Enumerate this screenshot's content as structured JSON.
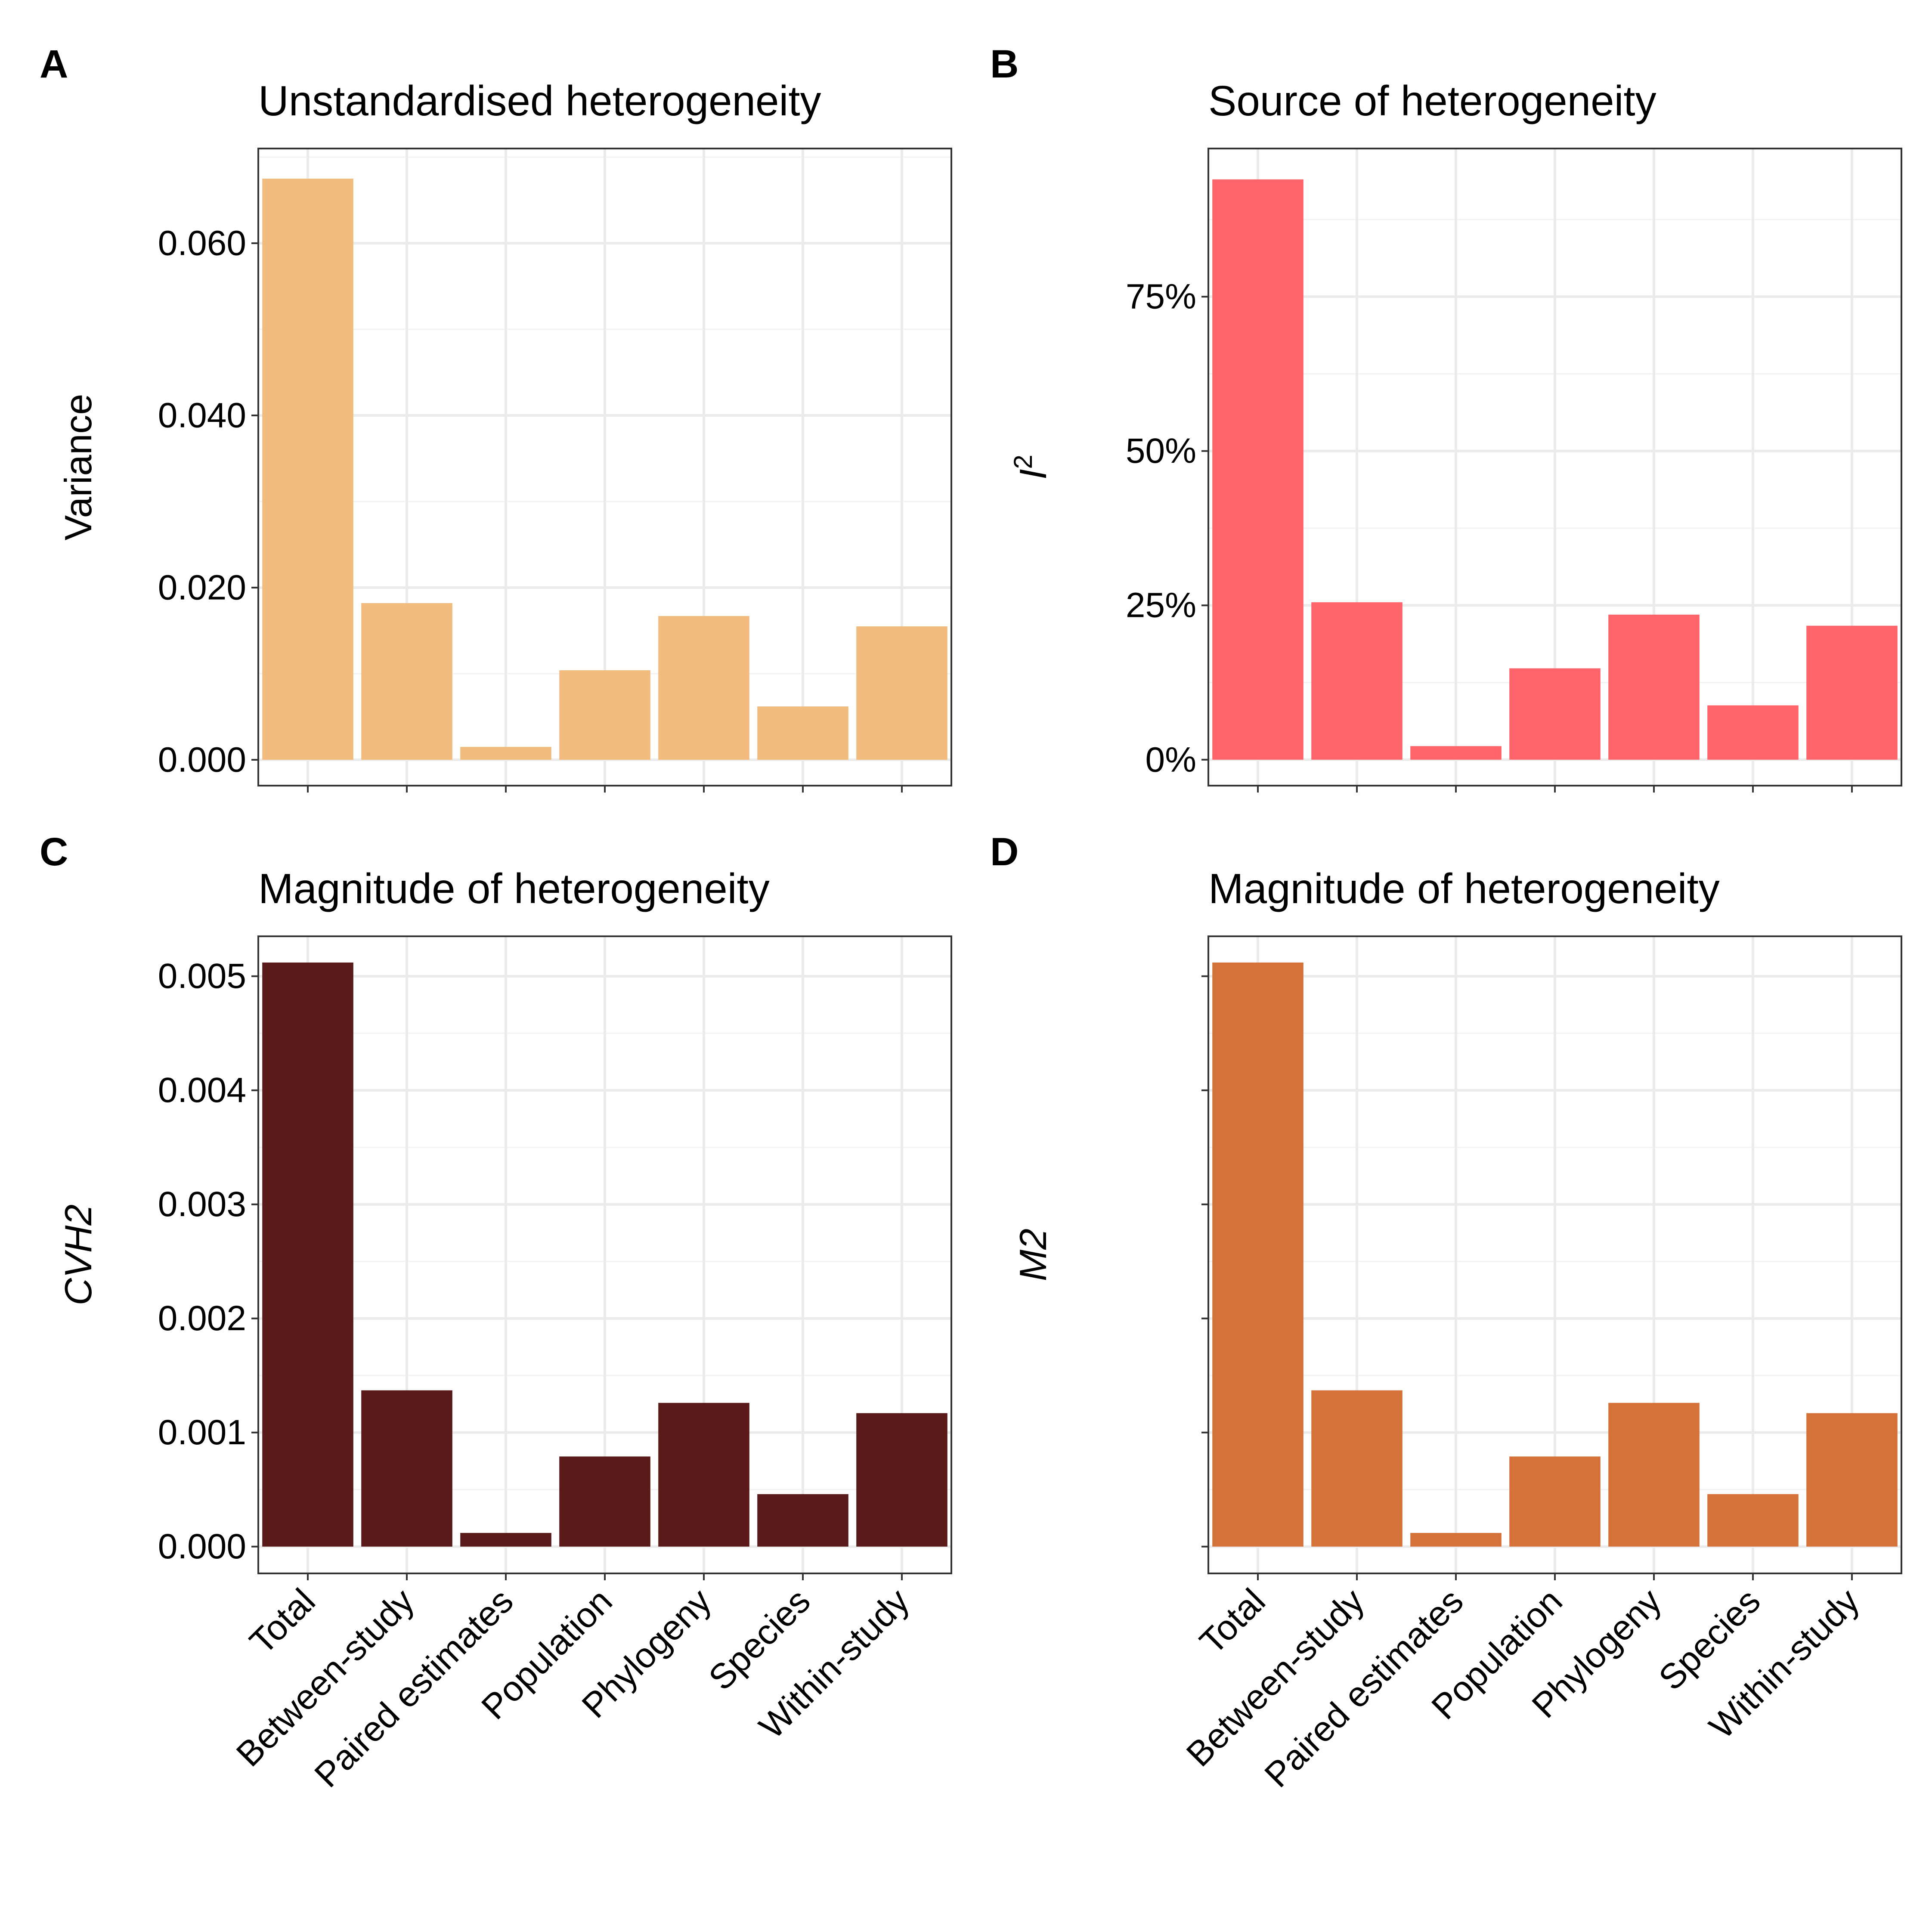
{
  "figure": {
    "panel_order": [
      "A",
      "B",
      "C",
      "D"
    ]
  },
  "chart_data": [
    {
      "panel_tag": "A",
      "type": "bar",
      "title": "Unstandardised heterogeneity",
      "ylabel": "Variance",
      "ylabel_italic": false,
      "categories": [
        "Total",
        "Between-study",
        "Paired estimates",
        "Population",
        "Phylogeny",
        "Species",
        "Within-study"
      ],
      "values": [
        0.0675,
        0.0182,
        0.0015,
        0.0104,
        0.0167,
        0.0062,
        0.0155
      ],
      "ylim": [
        -0.003,
        0.071
      ],
      "yticks": [
        0,
        0.02,
        0.04,
        0.06
      ],
      "ytick_labels": [
        "0.000",
        "0.020",
        "0.040",
        "0.060"
      ],
      "show_x_tick_labels": false,
      "bar_color": "#F1BC7E",
      "grid": true
    },
    {
      "panel_tag": "B",
      "type": "bar",
      "title": "Source of heterogeneity",
      "ylabel": "I2",
      "ylabel_italic": true,
      "categories": [
        "Total",
        "Between-study",
        "Paired estimates",
        "Population",
        "Phylogeny",
        "Species",
        "Within-study"
      ],
      "values": [
        0.94,
        0.255,
        0.022,
        0.148,
        0.235,
        0.088,
        0.217
      ],
      "ylim": [
        -0.042,
        0.99
      ],
      "yticks": [
        0,
        0.25,
        0.5,
        0.75
      ],
      "ytick_labels": [
        "0%",
        "25%",
        "50%",
        "75%"
      ],
      "show_x_tick_labels": false,
      "bar_color": "#FF646A",
      "grid": true
    },
    {
      "panel_tag": "C",
      "type": "bar",
      "title": "Magnitude of heterogeneity",
      "ylabel": "CVH2",
      "ylabel_italic": true,
      "categories": [
        "Total",
        "Between-study",
        "Paired estimates",
        "Population",
        "Phylogeny",
        "Species",
        "Within-study"
      ],
      "values": [
        0.00512,
        0.00137,
        0.00012,
        0.00079,
        0.00126,
        0.00046,
        0.00117
      ],
      "ylim": [
        -0.000235,
        0.00535
      ],
      "yticks": [
        0,
        0.001,
        0.002,
        0.003,
        0.004,
        0.005
      ],
      "ytick_labels": [
        "0.000",
        "0.001",
        "0.002",
        "0.003",
        "0.004",
        "0.005"
      ],
      "show_x_tick_labels": true,
      "bar_color": "#5A1A1A",
      "grid": true
    },
    {
      "panel_tag": "D",
      "type": "bar",
      "title": "Magnitude of heterogeneity",
      "ylabel": "M2",
      "ylabel_italic": true,
      "categories": [
        "Total",
        "Between-study",
        "Paired estimates",
        "Population",
        "Phylogeny",
        "Species",
        "Within-study"
      ],
      "values": [
        0.00512,
        0.00137,
        0.00012,
        0.00079,
        0.00126,
        0.00046,
        0.00117
      ],
      "ylim": [
        -0.000235,
        0.00535
      ],
      "yticks": [
        0,
        0.001,
        0.002,
        0.003,
        0.004,
        0.005
      ],
      "ytick_labels": [],
      "show_x_tick_labels": true,
      "bar_color": "#D57239",
      "grid": true
    }
  ]
}
